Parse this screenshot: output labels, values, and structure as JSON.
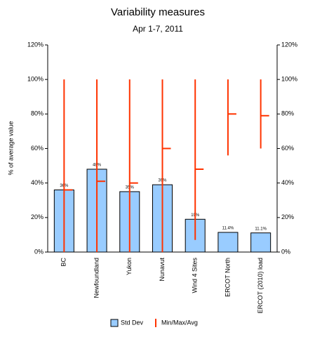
{
  "chart_data": {
    "type": "bar-range",
    "title": "Variability measures",
    "subtitle": "Apr 1-7, 2011",
    "y_label": "% of average value",
    "categories": [
      "BC",
      "Newfoundland",
      "Yukon",
      "Nunavut",
      "Wind 4 Sites",
      "ERCOT North",
      "ERCOT (2010) load"
    ],
    "series": [
      {
        "name": "Std Dev",
        "color": "#99ccff",
        "values": [
          36,
          48,
          35,
          39,
          19,
          11.4,
          11.1
        ],
        "value_labels": [
          "36%",
          "48%",
          "35%",
          "39%",
          "19%",
          "11.4%",
          "11.1%"
        ]
      },
      {
        "name": "Min/Max/Avg",
        "color": "#ff3300",
        "min": [
          0,
          0,
          0,
          0,
          7,
          56,
          60
        ],
        "max": [
          100,
          100,
          100,
          100,
          100,
          100,
          100
        ],
        "avg": [
          36,
          41,
          40,
          60,
          48,
          80,
          79
        ]
      }
    ],
    "ylim": [
      0,
      120
    ],
    "yticks": [
      {
        "value": 0,
        "label": "0%"
      },
      {
        "value": 20,
        "label": "20%"
      },
      {
        "value": 40,
        "label": "40%"
      },
      {
        "value": 60,
        "label": "60%"
      },
      {
        "value": 80,
        "label": "80%"
      },
      {
        "value": 100,
        "label": "100%"
      },
      {
        "value": 120,
        "label": "120%"
      }
    ],
    "y2lim": [
      0,
      120
    ],
    "y2ticks": [
      {
        "value": 0,
        "label": "0%"
      },
      {
        "value": 20,
        "label": "20%"
      },
      {
        "value": 40,
        "label": "40%"
      },
      {
        "value": 60,
        "label": "60%"
      },
      {
        "value": 80,
        "label": "80%"
      },
      {
        "value": 100,
        "label": "100%"
      },
      {
        "value": 120,
        "label": "120%"
      }
    ],
    "grid": false,
    "legend": "bottom"
  }
}
